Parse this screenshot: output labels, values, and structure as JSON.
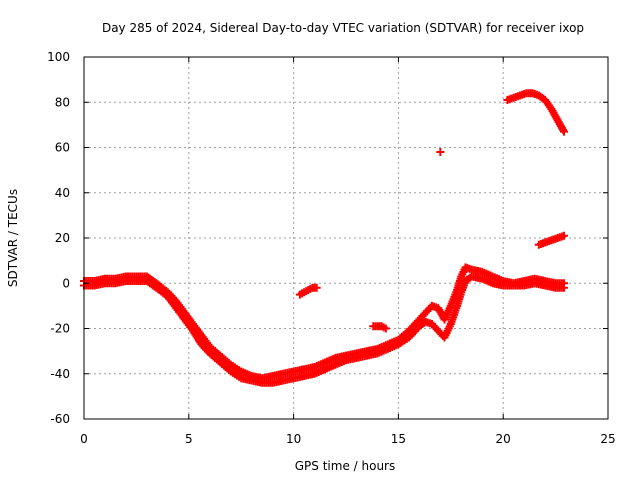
{
  "chart_data": {
    "type": "scatter",
    "title": "Day 285 of 2024, Sidereal Day-to-day VTEC variation (SDTVAR) for receiver ixop",
    "xlabel": "GPS time / hours",
    "ylabel": "SDTVAR / TECUs",
    "xlim": [
      0,
      25
    ],
    "ylim": [
      -60,
      100
    ],
    "x_ticks": [
      0,
      5,
      10,
      15,
      20,
      25
    ],
    "y_ticks": [
      -60,
      -40,
      -20,
      0,
      20,
      40,
      60,
      80,
      100
    ],
    "x_tick_labels": [
      "0",
      "5",
      "10",
      "15",
      "20",
      "25"
    ],
    "y_tick_labels": [
      "-60",
      "-40",
      "-20",
      "0",
      "20",
      "40",
      "60",
      "80",
      "100"
    ],
    "grid": true,
    "marker": "plus",
    "color": "#ff0000",
    "series": [
      {
        "name": "main-trace-upper",
        "x": [
          0.0,
          0.5,
          1.0,
          1.5,
          2.0,
          2.5,
          3.0,
          3.3,
          3.6,
          4.0,
          4.4,
          4.8,
          5.2,
          5.6,
          6.0,
          6.5,
          7.0,
          7.5,
          8.0,
          8.5,
          9.0,
          9.5,
          10.0,
          10.5,
          11.0,
          11.5,
          12.0,
          12.5,
          13.0,
          13.5,
          14.0,
          14.5,
          15.0,
          15.5,
          16.0,
          16.3,
          16.6,
          16.9,
          17.2,
          17.5,
          17.8,
          18.0,
          18.2,
          18.5,
          19.0,
          19.5,
          20.0,
          20.5,
          21.0,
          21.5,
          22.0,
          22.5,
          22.9
        ],
        "y": [
          1,
          1,
          2,
          2,
          3,
          3,
          3,
          1,
          -1,
          -4,
          -8,
          -13,
          -18,
          -23,
          -28,
          -32,
          -36,
          -39,
          -41,
          -42,
          -41,
          -40,
          -39,
          -38,
          -37,
          -35,
          -33,
          -32,
          -31,
          -30,
          -29,
          -27,
          -25,
          -21,
          -16,
          -13,
          -10,
          -11,
          -16,
          -10,
          -3,
          3,
          7,
          6,
          5,
          3,
          1,
          0,
          1,
          2,
          1,
          0,
          0
        ]
      },
      {
        "name": "main-trace-lower",
        "x": [
          0.0,
          0.5,
          1.0,
          1.5,
          2.0,
          2.5,
          3.0,
          3.3,
          3.6,
          4.0,
          4.4,
          4.8,
          5.2,
          5.6,
          6.0,
          6.5,
          7.0,
          7.5,
          8.0,
          8.5,
          9.0,
          9.5,
          10.0,
          10.5,
          11.0,
          11.5,
          12.0,
          12.5,
          13.0,
          13.5,
          14.0,
          14.5,
          15.0,
          15.5,
          16.0,
          16.3,
          16.6,
          16.9,
          17.2,
          17.5,
          17.8,
          18.0,
          18.2,
          18.5,
          19.0,
          19.5,
          20.0,
          20.5,
          21.0,
          21.5,
          22.0,
          22.5,
          22.9
        ],
        "y": [
          -1,
          -1,
          0,
          0,
          1,
          1,
          1,
          -1,
          -3,
          -6,
          -11,
          -16,
          -21,
          -27,
          -31,
          -35,
          -39,
          -42,
          -43,
          -44,
          -44,
          -43,
          -42,
          -41,
          -40,
          -38,
          -36,
          -34,
          -33,
          -32,
          -31,
          -29,
          -27,
          -24,
          -19,
          -17,
          -18,
          -21,
          -24,
          -18,
          -10,
          -4,
          1,
          3,
          2,
          0,
          -1,
          -1,
          -1,
          0,
          -1,
          -2,
          -2
        ]
      },
      {
        "name": "segment-near-10h",
        "x": [
          10.3,
          10.5,
          10.7,
          10.9,
          11.1
        ],
        "y": [
          -5,
          -4,
          -3,
          -2,
          -2
        ]
      },
      {
        "name": "segment-near-14h",
        "x": [
          13.8,
          14.0,
          14.2,
          14.4
        ],
        "y": [
          -19,
          -19,
          -19,
          -20
        ]
      },
      {
        "name": "point-near-17h",
        "x": [
          17.0
        ],
        "y": [
          58
        ]
      },
      {
        "name": "segment-morning-17-to-21",
        "x": [
          21.7,
          22.0,
          22.3,
          22.6,
          22.9
        ],
        "y": [
          17,
          18,
          19,
          20,
          21
        ]
      },
      {
        "name": "high-arc-near-21h",
        "x": [
          20.2,
          20.5,
          20.8,
          21.1,
          21.4,
          21.7,
          22.0,
          22.3,
          22.6,
          22.9
        ],
        "y": [
          81,
          82,
          83,
          84,
          84,
          83,
          81,
          77,
          72,
          67
        ]
      }
    ]
  }
}
